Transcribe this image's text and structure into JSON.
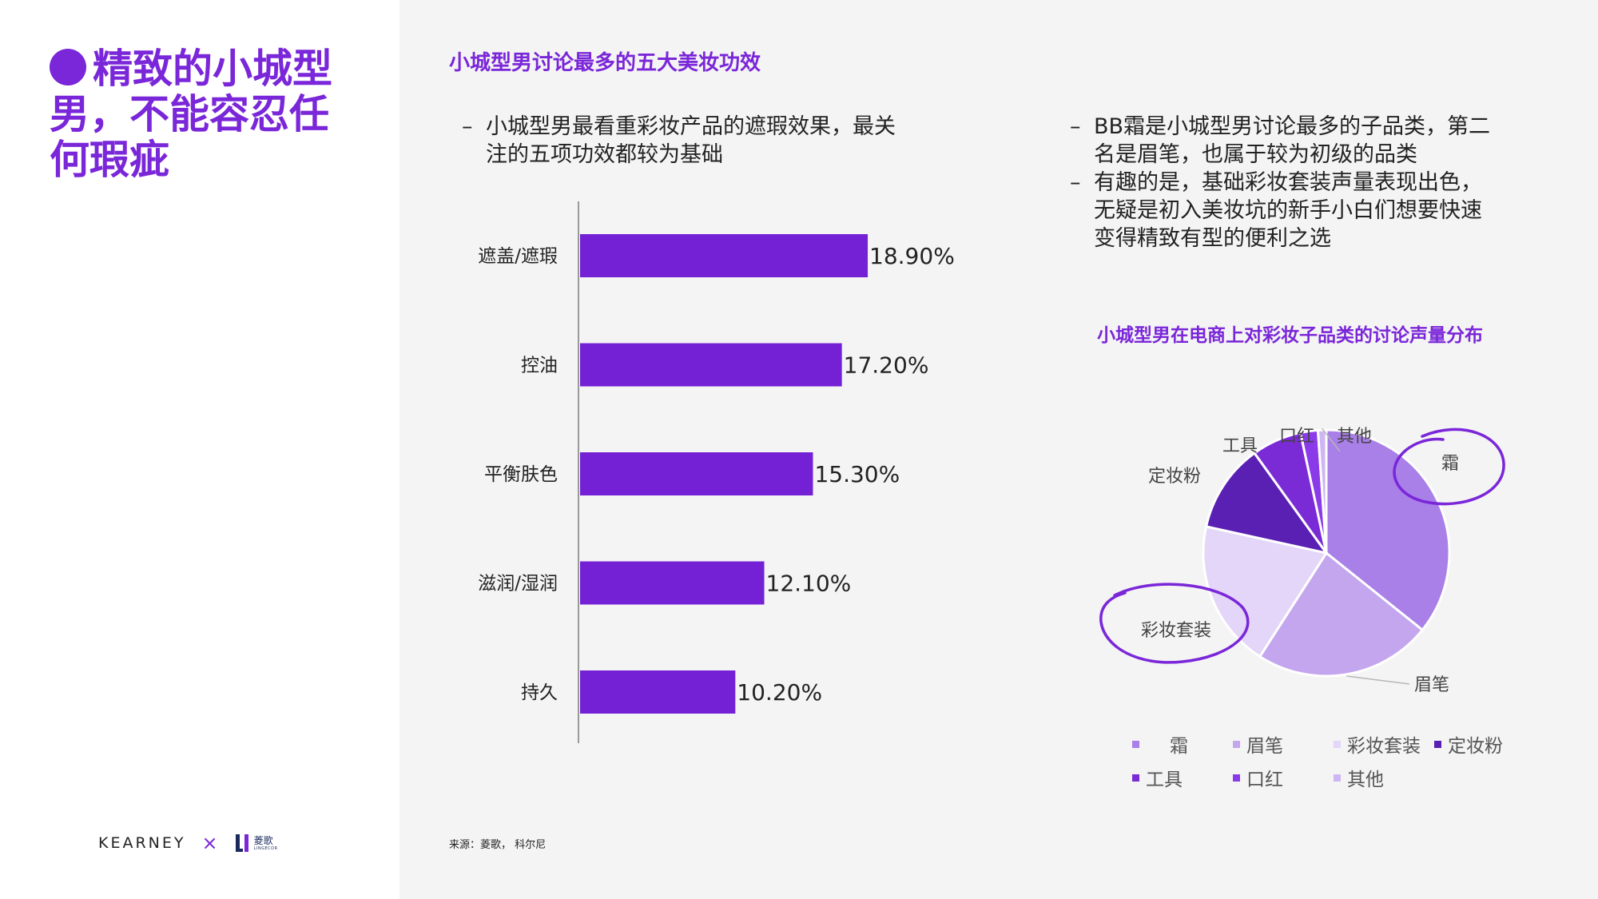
{
  "headline": {
    "line1": "精致的小城型",
    "line2": "男，不能容忍任",
    "line3": "何瑕疵"
  },
  "brand": {
    "kearney": "KEARNEY",
    "times": "×",
    "lingge_cn": "菱歌",
    "lingge_en": "LINGECOR"
  },
  "bar_title": "小城型男讨论最多的五大美妆功效",
  "bullets_left": [
    {
      "dash": "–",
      "lines": [
        "小城型男最看重彩妆产品的遮瑕效果，最关",
        "注的五项功效都较为基础"
      ]
    }
  ],
  "bullets_right": [
    {
      "dash": "–",
      "lines": [
        "BB霜是小城型男讨论最多的子品类，第二",
        "名是眉笔，也属于较为初级的品类"
      ]
    },
    {
      "dash": "–",
      "lines": [
        "有趣的是，基础彩妆套装声量表现出色，",
        "无疑是初入美妆坑的新手小白们想要快速",
        "变得精致有型的便利之选"
      ]
    }
  ],
  "pie_title": "小城型男在电商上对彩妆子品类的讨论声量分布",
  "source": "来源：菱歌， 科尔尼",
  "chart_data": [
    {
      "type": "bar",
      "orientation": "horizontal",
      "title": "小城型男讨论最多的五大美妆功效",
      "categories": [
        "遮盖/遮瑕",
        "控油",
        "平衡肤色",
        "滋润/湿润",
        "持久"
      ],
      "values": [
        18.9,
        17.2,
        15.3,
        12.1,
        10.2
      ],
      "value_labels": [
        "18.90%",
        "17.20%",
        "15.30%",
        "12.10%",
        "10.20%"
      ],
      "unit": "%",
      "xlim": [
        0,
        20
      ],
      "color": "#7421d6",
      "grid": false
    },
    {
      "type": "pie",
      "title": "小城型男在电商上对彩妆子品类的讨论声量分布",
      "labels": [
        "霜",
        "眉笔",
        "彩妆套装",
        "定妆粉",
        "工具",
        "口红",
        "其他"
      ],
      "values": [
        36.0,
        23.5,
        19.5,
        11.7,
        6.6,
        2.3,
        1.1
      ],
      "colors": [
        "#a97fe8",
        "#c4a6ef",
        "#e4d6f8",
        "#5a1fb3",
        "#7b2bd6",
        "#8a3ae8",
        "#cdb6f2"
      ],
      "legend_position": "bottom",
      "highlighted": [
        "霜",
        "彩妆套装"
      ]
    }
  ]
}
